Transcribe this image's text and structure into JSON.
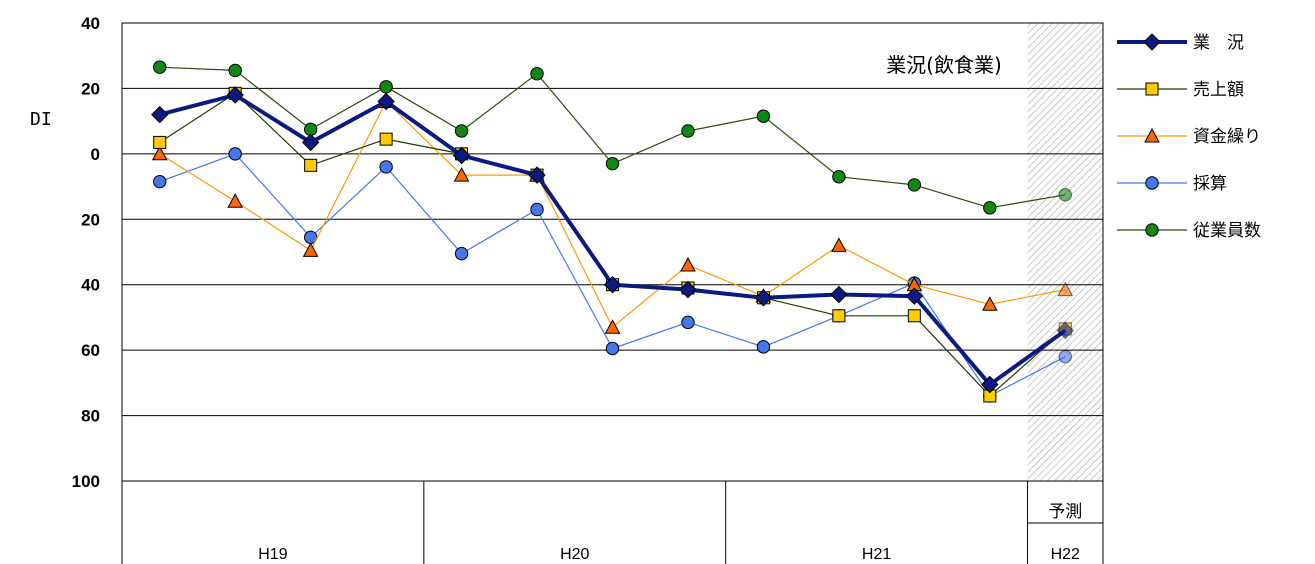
{
  "chart_data": {
    "type": "line",
    "title": "業況(飲食業)",
    "ylabel": "DI",
    "ylim": [
      -100,
      40
    ],
    "y_ticks": [
      40,
      20,
      0,
      -20,
      -40,
      -60,
      -80,
      -100
    ],
    "y_tick_labels": [
      "40",
      "20",
      "0",
      "20",
      "40",
      "60",
      "80",
      "100"
    ],
    "grid": true,
    "legend_position": "right",
    "x": [
      1,
      2,
      3,
      4,
      5,
      6,
      7,
      8,
      9,
      10,
      11,
      12,
      13
    ],
    "groups": [
      {
        "label": "H19",
        "from": 1,
        "to": 4
      },
      {
        "label": "H20",
        "from": 5,
        "to": 8
      },
      {
        "label": "H21",
        "from": 9,
        "to": 12
      },
      {
        "label": "H22",
        "from": 13,
        "to": 13,
        "note": "予測"
      }
    ],
    "forecast_from": 13,
    "series": [
      {
        "name": "業　況",
        "marker": "diamond",
        "color": "#0a1a80",
        "values": [
          12,
          18,
          3.5,
          16,
          -0.5,
          -6.5,
          -40,
          -41.5,
          -44,
          -43,
          -43.5,
          -70.5,
          -54
        ]
      },
      {
        "name": "売上額",
        "marker": "square",
        "color": "#ffcc00",
        "line_color": "#1f3d00",
        "values": [
          3.5,
          18.5,
          -3.5,
          4.5,
          0,
          -6.5,
          -40,
          -41,
          -44,
          -49.5,
          -49.5,
          -74,
          -53.5
        ]
      },
      {
        "name": "資金繰り",
        "marker": "triangle",
        "color": "#ff6600",
        "line_color": "#ff9900",
        "values": [
          0,
          -14.5,
          -29.5,
          16,
          -6.5,
          -6.5,
          -53,
          -34,
          -43.5,
          -28,
          -40,
          -46,
          -41.5
        ]
      },
      {
        "name": "採算",
        "marker": "circle",
        "color": "#4477ee",
        "line_color": "#4477ee",
        "values": [
          -8.5,
          0,
          -25.5,
          -4,
          -30.5,
          -17,
          -59.5,
          -51.5,
          -59,
          -49.5,
          -39.5,
          -74,
          -62
        ]
      },
      {
        "name": "従業員数",
        "marker": "circle",
        "color": "#118811",
        "line_color": "#2a4a10",
        "values": [
          26.5,
          25.5,
          7.5,
          20.5,
          7,
          24.5,
          -3,
          7,
          11.5,
          -7,
          -9.5,
          -16.5,
          -12.5
        ]
      }
    ]
  }
}
